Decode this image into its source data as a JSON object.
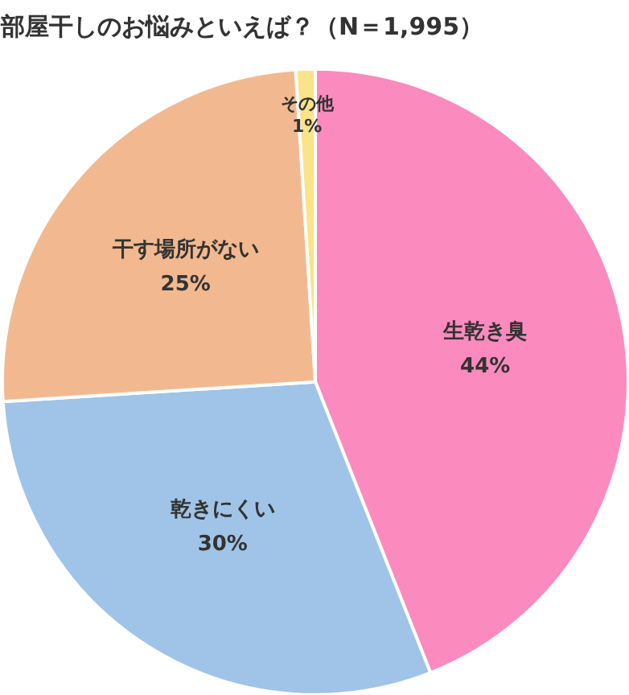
{
  "chart_data": {
    "type": "pie",
    "title": "部屋干しのお悩みといえば？（N＝1,995）",
    "categories": [
      "生乾き臭",
      "乾きにくい",
      "干す場所がない",
      "その他"
    ],
    "values": [
      44,
      30,
      25,
      1
    ],
    "colors": [
      "#fb8bbe",
      "#9fc4e7",
      "#f2b990",
      "#fbe38a"
    ],
    "value_labels": [
      "44%",
      "30%",
      "25%",
      "1%"
    ]
  }
}
